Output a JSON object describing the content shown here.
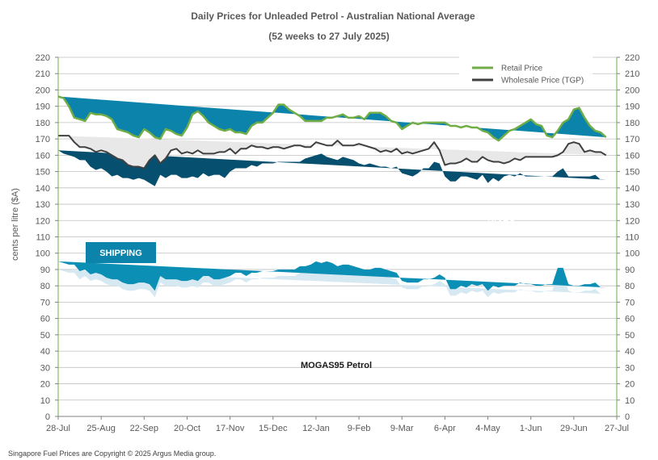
{
  "chart_data": {
    "type": "area",
    "title": "Daily  Prices for Unleaded  Petrol  - Australian  National  Average",
    "subtitle": "(52 weeks to 27 July  2025)",
    "ylabel": "cents per litre ($A)",
    "ylim": [
      0,
      220
    ],
    "ystep": 10,
    "grid": true,
    "legend_position": "top-right",
    "x_tick_labels": [
      "28-Jul",
      "25-Aug",
      "22-Sep",
      "20-Oct",
      "17-Nov",
      "15-Dec",
      "12-Jan",
      "9-Feb",
      "9-Mar",
      "6-Apr",
      "4-May",
      "1-Jun",
      "29-Jun",
      "27-Jul"
    ],
    "x_tick_weeks": [
      0,
      4,
      8,
      12,
      16,
      20,
      24,
      28,
      32,
      36,
      40,
      44,
      48,
      52
    ],
    "weeks": [
      0,
      0.5,
      1,
      1.5,
      2,
      2.5,
      3,
      3.5,
      4,
      4.5,
      5,
      5.5,
      6,
      6.5,
      7,
      7.5,
      8,
      8.5,
      9,
      9.5,
      10,
      10.5,
      11,
      11.5,
      12,
      12.5,
      13,
      13.5,
      14,
      14.5,
      15,
      15.5,
      16,
      16.5,
      17,
      17.5,
      18,
      18.5,
      19,
      19.5,
      20,
      20.5,
      21,
      21.5,
      22,
      22.5,
      23,
      23.5,
      24,
      24.5,
      25,
      25.5,
      26,
      26.5,
      27,
      27.5,
      28,
      28.5,
      29,
      29.5,
      30,
      30.5,
      31,
      31.5,
      32,
      32.5,
      33,
      33.5,
      34,
      34.5,
      35,
      35.5,
      36,
      36.5,
      37,
      37.5,
      38,
      38.5,
      39,
      39.5,
      40,
      40.5,
      41,
      41.5,
      42,
      42.5,
      43,
      43.5,
      44,
      44.5,
      45,
      45.5,
      46,
      46.5,
      47,
      47.5,
      48,
      48.5,
      49,
      49.5,
      50,
      50.5,
      51,
      51.5,
      52
    ],
    "series": [
      {
        "name": "Retail Price",
        "color": "#70ad47",
        "values": [
          196,
          195,
          190,
          183,
          182,
          181,
          186,
          185,
          185,
          184,
          182,
          176,
          175,
          174,
          172,
          171,
          176,
          174,
          171,
          170,
          176,
          175,
          173,
          172,
          177,
          185,
          187,
          184,
          180,
          178,
          176,
          175,
          176,
          174,
          174,
          173,
          178,
          180,
          180,
          183,
          186,
          191,
          191,
          188,
          186,
          184,
          181,
          181,
          181,
          181,
          183,
          183,
          184,
          185,
          183,
          183,
          184,
          182,
          186,
          186,
          186,
          184,
          181,
          180,
          176,
          178,
          180,
          179,
          180,
          180,
          180,
          180,
          180,
          178,
          178,
          177,
          178,
          177,
          177,
          175,
          174,
          171,
          169,
          172,
          175,
          176,
          178,
          180,
          182,
          179,
          178,
          172,
          171,
          175,
          180,
          182,
          188,
          189,
          183,
          178,
          175,
          174,
          171
        ]
      },
      {
        "name": "Wholesale Price (TGP)",
        "color": "#404040",
        "values": [
          172,
          172,
          172,
          168,
          165,
          165,
          164,
          162,
          163,
          162,
          160,
          158,
          157,
          154,
          153,
          153,
          152,
          157,
          160,
          155,
          158,
          163,
          164,
          161,
          162,
          161,
          163,
          161,
          161,
          161,
          162,
          162,
          164,
          161,
          164,
          164,
          166,
          165,
          165,
          164,
          165,
          165,
          164,
          165,
          166,
          166,
          165,
          165,
          168,
          167,
          166,
          166,
          169,
          166,
          166,
          166,
          167,
          166,
          165,
          164,
          162,
          163,
          162,
          164,
          161,
          162,
          161,
          162,
          163,
          164,
          168,
          163,
          154,
          155,
          155,
          156,
          158,
          156,
          156,
          159,
          157,
          156,
          156,
          155,
          156,
          158,
          157,
          159,
          159,
          159,
          159,
          159,
          159,
          160,
          162,
          167,
          168,
          167,
          162,
          163,
          162,
          162,
          160
        ]
      }
    ],
    "layers": [
      {
        "label": "MOGAS95 Petrol",
        "color": "#d6e8f2",
        "values": [
          90,
          89,
          88,
          88,
          84,
          86,
          83,
          84,
          83,
          81,
          80,
          80,
          78,
          77,
          77,
          78,
          78,
          77,
          73,
          82,
          80,
          80,
          80,
          79,
          79,
          80,
          79,
          82,
          82,
          80,
          80,
          81,
          82,
          84,
          84,
          82,
          84,
          84,
          85,
          85,
          85,
          86,
          86,
          86,
          86,
          88,
          88,
          89,
          91,
          90,
          91,
          90,
          88,
          89,
          89,
          88,
          87,
          86,
          86,
          87,
          87,
          86,
          85,
          84,
          79,
          78,
          78,
          78,
          80,
          80,
          81,
          83,
          81,
          74,
          74,
          76,
          75,
          77,
          76,
          77,
          73,
          76,
          75,
          76,
          76,
          76,
          78,
          77,
          77,
          76,
          76,
          77,
          77,
          87,
          87,
          77,
          76,
          76,
          77,
          77,
          78,
          75,
          75
        ]
      },
      {
        "label": "SHIPPING",
        "color": "#0c8fb5",
        "values": [
          5,
          5,
          5,
          5,
          5,
          4,
          4,
          4,
          4,
          4,
          4,
          4,
          4,
          4,
          4,
          4,
          4,
          4,
          4,
          4,
          4,
          4,
          4,
          4,
          4,
          4,
          4,
          4,
          4,
          4,
          4,
          4,
          4,
          4,
          4,
          4,
          4,
          4,
          4,
          4,
          4,
          4,
          4,
          4,
          4,
          4,
          4,
          4,
          4,
          4,
          4,
          4,
          4,
          4,
          4,
          4,
          4,
          4,
          4,
          4,
          4,
          4,
          4,
          4,
          4,
          4,
          4,
          4,
          4,
          4,
          4,
          4,
          4,
          4,
          4,
          4,
          4,
          4,
          4,
          4,
          4,
          4,
          4,
          4,
          4,
          4,
          4,
          4,
          4,
          4,
          4,
          4,
          4,
          4,
          4,
          4,
          4,
          4,
          4,
          4,
          4,
          4,
          4
        ]
      },
      {
        "label": "TAXES",
        "color": "#064f6e",
        "values": [
          68,
          67,
          67,
          66,
          68,
          67,
          66,
          63,
          65,
          65,
          63,
          64,
          64,
          65,
          64,
          64,
          63,
          62,
          64,
          62,
          62,
          64,
          64,
          63,
          63,
          63,
          63,
          63,
          61,
          64,
          64,
          61,
          64,
          64,
          64,
          66,
          66,
          65,
          66,
          66,
          66,
          66,
          66,
          66,
          66,
          64,
          66,
          66,
          65,
          67,
          64,
          64,
          65,
          66,
          65,
          65,
          64,
          64,
          65,
          63,
          62,
          63,
          63,
          65,
          66,
          66,
          65,
          67,
          68,
          68,
          71,
          68,
          62,
          66,
          66,
          67,
          68,
          65,
          65,
          67,
          66,
          66,
          65,
          67,
          68,
          67,
          67,
          66,
          66,
          67,
          67,
          66,
          66,
          59,
          61,
          66,
          67,
          67,
          66,
          66,
          66,
          66,
          66
        ]
      }
    ],
    "annotations": [
      "SHIPPING",
      "TAXES",
      "MOGAS95 Petrol"
    ]
  },
  "footer": "Singapore  Fuel Prices are  Copyright © 2025 Argus Media  group."
}
